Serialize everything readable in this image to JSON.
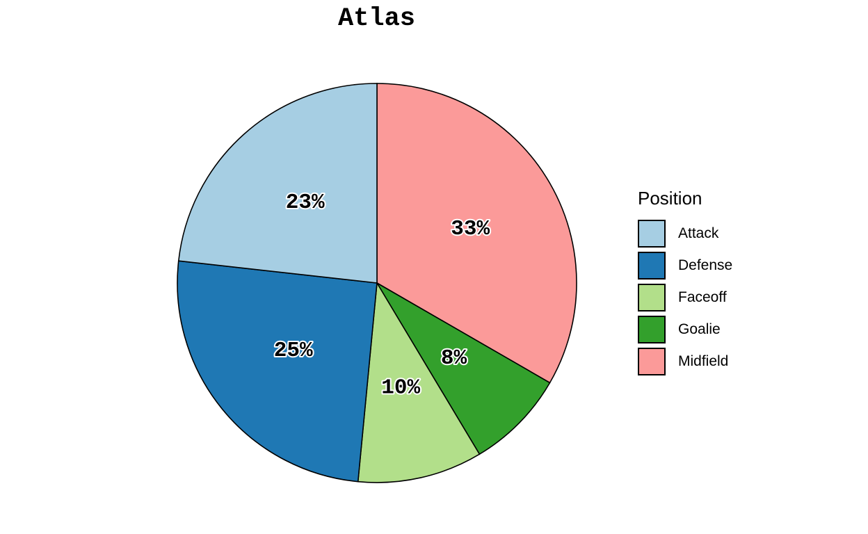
{
  "chart_data": {
    "type": "pie",
    "title": "Atlas",
    "legend_title": "Position",
    "legend_position": "right",
    "direction": "clockwise",
    "start": "top",
    "slices": [
      {
        "label": "Midfield",
        "value": 33,
        "value_label": "33%",
        "color": "#fb9a99"
      },
      {
        "label": "Goalie",
        "value": 8,
        "value_label": "8%",
        "color": "#33a02c"
      },
      {
        "label": "Faceoff",
        "value": 10,
        "value_label": "10%",
        "color": "#b2df8a"
      },
      {
        "label": "Defense",
        "value": 25,
        "value_label": "25%",
        "color": "#1f78b4"
      },
      {
        "label": "Attack",
        "value": 23,
        "value_label": "23%",
        "color": "#a6cee3"
      }
    ],
    "legend_entries": [
      {
        "label": "Attack",
        "color": "#a6cee3"
      },
      {
        "label": "Defense",
        "color": "#1f78b4"
      },
      {
        "label": "Faceoff",
        "color": "#b2df8a"
      },
      {
        "label": "Goalie",
        "color": "#33a02c"
      },
      {
        "label": "Midfield",
        "color": "#fb9a99"
      }
    ]
  }
}
